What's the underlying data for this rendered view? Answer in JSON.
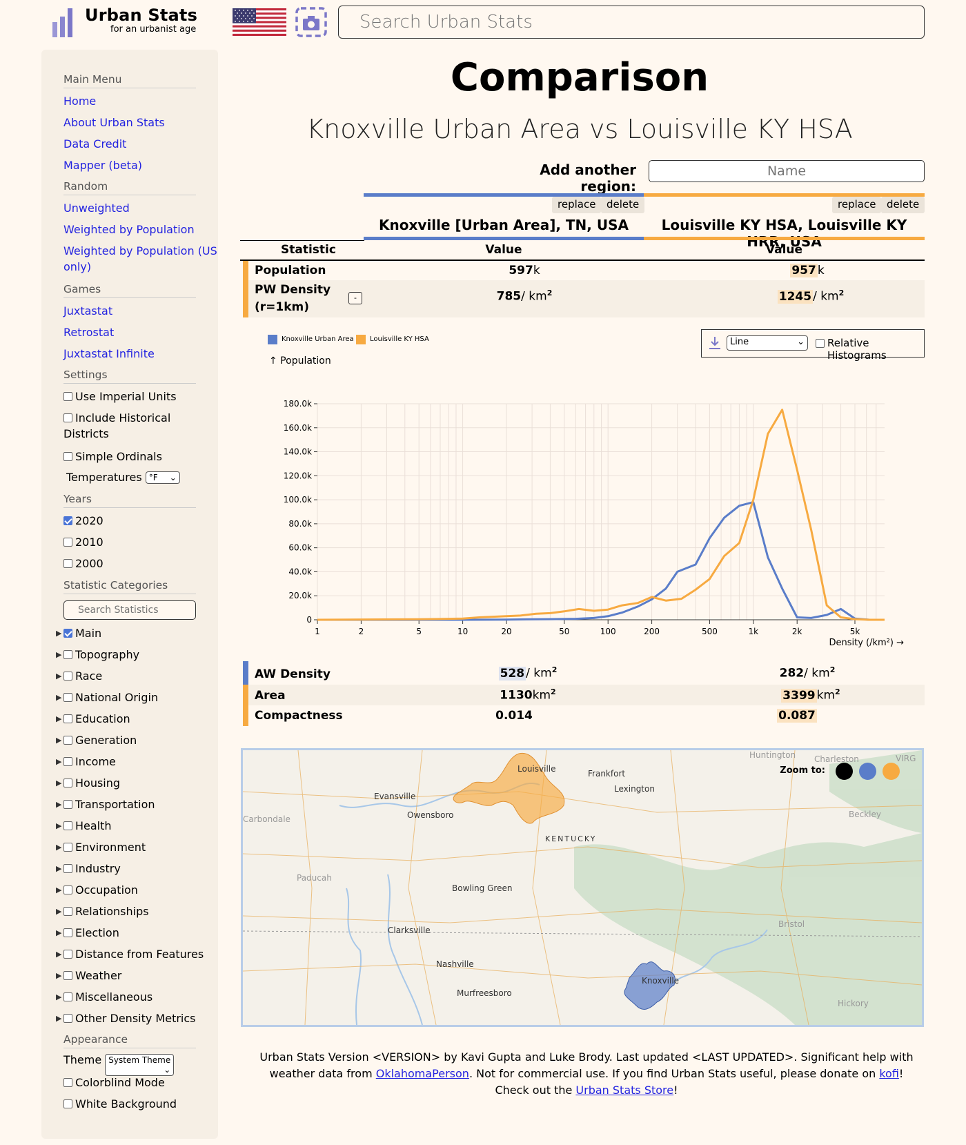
{
  "header": {
    "logo_title": "Urban Stats",
    "logo_subtitle": "for an urbanist age",
    "search_placeholder": "Search Urban Stats"
  },
  "sidebar": {
    "main_menu": {
      "heading": "Main Menu",
      "items": [
        "Home",
        "About Urban Stats",
        "Data Credit",
        "Mapper (beta)"
      ]
    },
    "random": {
      "heading": "Random",
      "items": [
        "Unweighted",
        "Weighted by Population",
        "Weighted by Population (US",
        "only)"
      ]
    },
    "games": {
      "heading": "Games",
      "items": [
        "Juxtastat",
        "Retrostat",
        "Juxtastat Infinite"
      ]
    },
    "settings": {
      "heading": "Settings",
      "imperial": "Use Imperial Units",
      "historical_1": "Include Historical",
      "historical_2": "Districts",
      "simple_ordinals": "Simple Ordinals",
      "temperatures_label": "Temperatures",
      "temperatures_value": "°F"
    },
    "years": {
      "heading": "Years",
      "items": [
        {
          "label": "2020",
          "checked": true
        },
        {
          "label": "2010",
          "checked": false
        },
        {
          "label": "2000",
          "checked": false
        }
      ]
    },
    "categories": {
      "heading": "Statistic Categories",
      "search_placeholder": "Search Statistics",
      "items": [
        {
          "label": "Main",
          "checked": true
        },
        {
          "label": "Topography",
          "checked": false
        },
        {
          "label": "Race",
          "checked": false
        },
        {
          "label": "National Origin",
          "checked": false
        },
        {
          "label": "Education",
          "checked": false
        },
        {
          "label": "Generation",
          "checked": false
        },
        {
          "label": "Income",
          "checked": false
        },
        {
          "label": "Housing",
          "checked": false
        },
        {
          "label": "Transportation",
          "checked": false
        },
        {
          "label": "Health",
          "checked": false
        },
        {
          "label": "Environment",
          "checked": false
        },
        {
          "label": "Industry",
          "checked": false
        },
        {
          "label": "Occupation",
          "checked": false
        },
        {
          "label": "Relationships",
          "checked": false
        },
        {
          "label": "Election",
          "checked": false
        },
        {
          "label": "Distance from Features",
          "checked": false
        },
        {
          "label": "Weather",
          "checked": false
        },
        {
          "label": "Miscellaneous",
          "checked": false
        },
        {
          "label": "Other Density Metrics",
          "checked": false
        }
      ]
    },
    "appearance": {
      "heading": "Appearance",
      "theme_label": "Theme",
      "theme_value": "System Theme",
      "colorblind": "Colorblind Mode",
      "white_bg": "White Background"
    }
  },
  "main": {
    "title": "Comparison",
    "subtitle": "Knoxville Urban Area vs Louisville KY HSA",
    "add_region_label": "Add another region:",
    "add_region_placeholder": "Name",
    "replace_label": "replace",
    "delete_label": "delete",
    "regions": [
      {
        "name": "Knoxville [Urban Area], TN, USA",
        "color": "#5a7dc9"
      },
      {
        "name": "Louisville KY HSA, Louisville KY HRR, USA",
        "color": "#f7aa41"
      }
    ],
    "col_statistic": "Statistic",
    "col_value": "Value",
    "stats": [
      {
        "label": "Population",
        "v1": "597",
        "u1": "k",
        "v2": "957",
        "u2": "k",
        "bar": "#f7aa41"
      },
      {
        "label_1": "PW Density",
        "label_2": "(r=1km)",
        "expand": "-",
        "v1": "785",
        "u1": "/ km",
        "v2": "1245",
        "u2": "/ km",
        "bar": "#f7aa41"
      }
    ],
    "stats2": [
      {
        "label": "AW Density",
        "v1": "528",
        "u1": "/ km",
        "v2": "282",
        "u2": "/ km",
        "bar": "#5a7dc9"
      },
      {
        "label": "Area",
        "v1": "1130",
        "u1": "km",
        "v2": "3399",
        "u2": "km",
        "bar": "#f7aa41"
      },
      {
        "label": "Compactness",
        "v1": "0.014",
        "u1": "",
        "v2": "0.087",
        "u2": "",
        "bar": "#f7aa41"
      }
    ],
    "unit_sup": "2",
    "chart_controls": {
      "select_value": "Line",
      "relative_label": "Relative Histograms"
    }
  },
  "chart_data": {
    "type": "line",
    "ylabel": "↑ Population",
    "xlabel": "Density (/km²) →",
    "x_scale": "log",
    "ylim": [
      0,
      180000
    ],
    "y_ticks": [
      "180.0k",
      "160.0k",
      "140.0k",
      "120.0k",
      "100.0k",
      "80.0k",
      "60.0k",
      "40.0k",
      "20.0k",
      "0"
    ],
    "y_tick_values": [
      180000,
      160000,
      140000,
      120000,
      100000,
      80000,
      60000,
      40000,
      20000,
      0
    ],
    "x_ticks": [
      "1",
      "2",
      "5",
      "10",
      "20",
      "50",
      "100",
      "200",
      "500",
      "1k",
      "2k",
      "5k"
    ],
    "x_tick_values": [
      1,
      2,
      5,
      10,
      20,
      50,
      100,
      200,
      500,
      1000,
      2000,
      5000
    ],
    "x_grid": [
      1,
      2,
      3,
      4,
      5,
      6,
      7,
      8,
      9,
      10,
      20,
      30,
      40,
      50,
      60,
      70,
      80,
      90,
      100,
      200,
      300,
      400,
      500,
      600,
      700,
      800,
      900,
      1000,
      2000,
      3000,
      4000,
      5000,
      6000,
      7000
    ],
    "xlim": [
      1,
      8000
    ],
    "series": [
      {
        "name": "Knoxville Urban Area",
        "color": "#5a7dc9",
        "x": [
          1,
          10,
          20,
          40,
          60,
          80,
          100,
          125,
          160,
          200,
          250,
          300,
          400,
          500,
          630,
          800,
          1000,
          1260,
          1580,
          2000,
          2500,
          3200,
          4000,
          5000,
          6300,
          8000
        ],
        "y": [
          0,
          0,
          200,
          500,
          800,
          1500,
          3000,
          6000,
          11000,
          17000,
          26000,
          40000,
          46000,
          68000,
          85000,
          95000,
          98000,
          52000,
          26000,
          2000,
          1500,
          4000,
          9000,
          1000,
          0,
          0
        ]
      },
      {
        "name": "Louisville KY HSA",
        "color": "#f7aa41",
        "x": [
          1,
          5,
          10,
          13,
          20,
          25,
          32,
          40,
          50,
          63,
          80,
          100,
          125,
          160,
          200,
          250,
          320,
          400,
          500,
          630,
          800,
          1000,
          1260,
          1580,
          2000,
          2500,
          3200,
          4000,
          5000,
          6300,
          8000
        ],
        "y": [
          0,
          400,
          1000,
          2000,
          3000,
          3500,
          5000,
          5500,
          7000,
          9000,
          7500,
          8500,
          12000,
          14000,
          19000,
          16000,
          17500,
          25000,
          34000,
          53000,
          64000,
          100000,
          155000,
          175000,
          125000,
          75000,
          12000,
          2000,
          500,
          0,
          0
        ]
      }
    ]
  },
  "map": {
    "zoom_label": "Zoom to:",
    "labels": [
      "Louisville",
      "Frankfort",
      "Lexington",
      "Evansville",
      "Owensboro",
      "Carbondale",
      "KENTUCKY",
      "Paducah",
      "Bowling Green",
      "Clarksville",
      "Nashville",
      "Murfreesboro",
      "Knoxville",
      "Bristol",
      "Beckley",
      "Charleston",
      "Huntington",
      "Hickory",
      "VIRG"
    ],
    "zoom_colors": [
      "#000000",
      "#5a7dc9",
      "#f7aa41"
    ]
  },
  "footer": {
    "t1": "Urban Stats Version <VERSION> by Kavi Gupta and Luke Brody. Last updated <LAST UPDATED>. Significant help with weather data from ",
    "l1": "OklahomaPerson",
    "t2": ". Not for commercial use. If you find Urban Stats useful, please donate on ",
    "l2": "kofi",
    "t3": "! Check out the ",
    "l3": "Urban Stats Store",
    "t4": "!"
  }
}
